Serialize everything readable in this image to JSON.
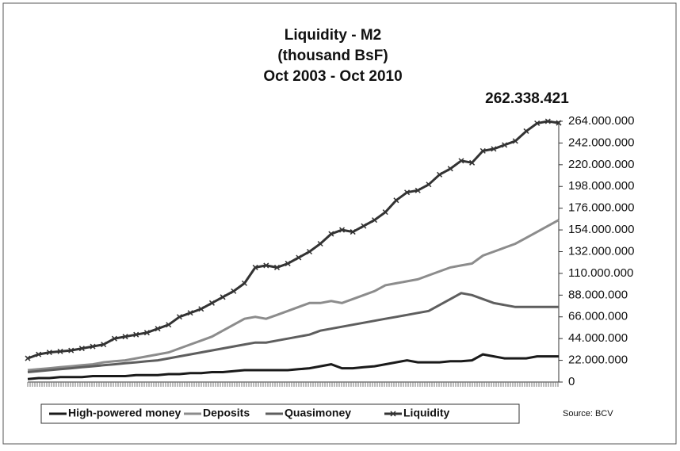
{
  "chart_data": {
    "type": "line",
    "title": "Liquidity - M2",
    "subtitle": [
      "(thousand BsF)",
      "Oct 2003 - Oct 2010"
    ],
    "annotation": "262.338.421",
    "source": "Source: BCV",
    "ylim": [
      0,
      264000000
    ],
    "yticks": [
      0,
      {
        "value": 22000000,
        "label": "22.000.000"
      },
      {
        "value": 44000000,
        "label": "44.000.000"
      },
      {
        "value": 66000000,
        "label": "66.000.000"
      },
      {
        "value": 88000000,
        "label": "88.000.000"
      },
      {
        "value": 110000000,
        "label": "110.000.000"
      },
      {
        "value": 132000000,
        "label": "132.000.000"
      },
      {
        "value": 154000000,
        "label": "154.000.000"
      },
      {
        "value": 176000000,
        "label": "176.000.000"
      },
      {
        "value": 198000000,
        "label": "198.000.000"
      },
      {
        "value": 220000000,
        "label": "220.000.000"
      },
      {
        "value": 242000000,
        "label": "242.000.000"
      },
      {
        "value": 264000000,
        "label": "264.000.000"
      }
    ],
    "y_axis_side": "right",
    "legend": "bottom",
    "series": [
      {
        "name": "High-powered money",
        "color": "#1a1a1a",
        "values": [
          3000000,
          4000000,
          4000000,
          5000000,
          5000000,
          5000000,
          6000000,
          6000000,
          6000000,
          6000000,
          7000000,
          7000000,
          7000000,
          8000000,
          8000000,
          9000000,
          9000000,
          10000000,
          10000000,
          11000000,
          12000000,
          12000000,
          12000000,
          12000000,
          12000000,
          13000000,
          14000000,
          16000000,
          18000000,
          14000000,
          14000000,
          15000000,
          16000000,
          18000000,
          20000000,
          22000000,
          20000000,
          20000000,
          20000000,
          21000000,
          21000000,
          22000000,
          28000000,
          26000000,
          24000000,
          24000000,
          24000000,
          26000000,
          26000000,
          26000000
        ]
      },
      {
        "name": "Deposits",
        "color": "#8c8c8c",
        "values": [
          12000000,
          13000000,
          14000000,
          15000000,
          16000000,
          17000000,
          18000000,
          20000000,
          21000000,
          22000000,
          24000000,
          26000000,
          28000000,
          30000000,
          34000000,
          38000000,
          42000000,
          46000000,
          52000000,
          58000000,
          64000000,
          66000000,
          64000000,
          68000000,
          72000000,
          76000000,
          80000000,
          80000000,
          82000000,
          80000000,
          84000000,
          88000000,
          92000000,
          98000000,
          100000000,
          102000000,
          104000000,
          108000000,
          112000000,
          116000000,
          118000000,
          120000000,
          128000000,
          132000000,
          136000000,
          140000000,
          146000000,
          152000000,
          158000000,
          164000000
        ]
      },
      {
        "name": "Quasimoney",
        "color": "#5e5e5e",
        "values": [
          10000000,
          11000000,
          12000000,
          13000000,
          14000000,
          15000000,
          16000000,
          17000000,
          18000000,
          19000000,
          20000000,
          21000000,
          22000000,
          24000000,
          26000000,
          28000000,
          30000000,
          32000000,
          34000000,
          36000000,
          38000000,
          40000000,
          40000000,
          42000000,
          44000000,
          46000000,
          48000000,
          52000000,
          54000000,
          56000000,
          58000000,
          60000000,
          62000000,
          64000000,
          66000000,
          68000000,
          70000000,
          72000000,
          78000000,
          84000000,
          90000000,
          88000000,
          84000000,
          80000000,
          78000000,
          76000000,
          76000000,
          76000000,
          76000000,
          76000000
        ]
      },
      {
        "name": "Liquidity",
        "color": "#333333",
        "marker": "x",
        "values": [
          24000000,
          28000000,
          30000000,
          31000000,
          32000000,
          34000000,
          36000000,
          38000000,
          44000000,
          46000000,
          48000000,
          50000000,
          54000000,
          58000000,
          66000000,
          70000000,
          74000000,
          80000000,
          86000000,
          92000000,
          100000000,
          116000000,
          118000000,
          116000000,
          120000000,
          126000000,
          132000000,
          140000000,
          150000000,
          154000000,
          152000000,
          158000000,
          164000000,
          172000000,
          184000000,
          192000000,
          194000000,
          200000000,
          210000000,
          216000000,
          224000000,
          222000000,
          234000000,
          236000000,
          240000000,
          244000000,
          254000000,
          262000000,
          264000000,
          262338421
        ]
      }
    ]
  }
}
